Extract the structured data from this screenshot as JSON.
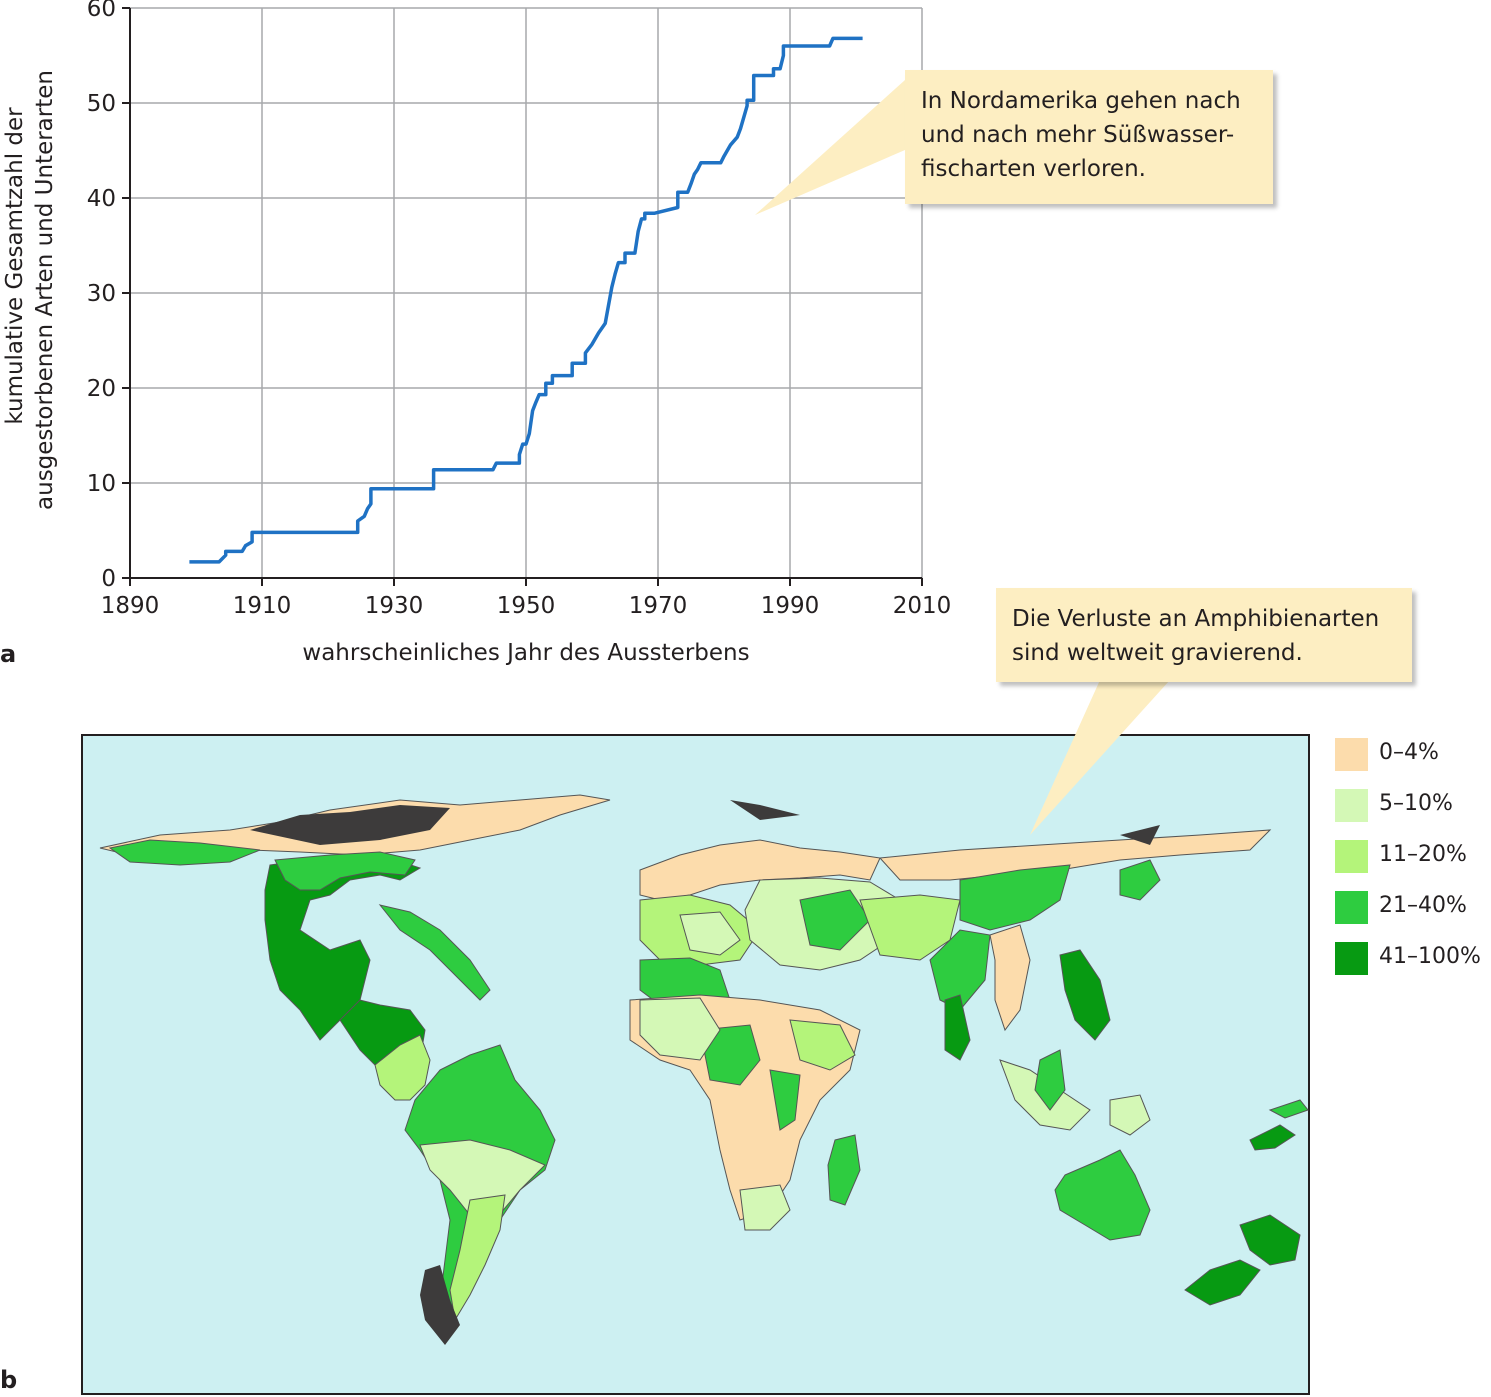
{
  "panel_a": {
    "letter": "a"
  },
  "panel_b": {
    "letter": "b"
  },
  "chart_data": [
    {
      "type": "line",
      "title": "",
      "xlabel": "wahrscheinliches Jahr des Aussterbens",
      "ylabel_lines": [
        "kumulative Gesamtzahl der",
        "ausgestorbenen Arten und Unterarten"
      ],
      "xlim": [
        1890,
        2010
      ],
      "ylim": [
        0,
        60
      ],
      "x_ticks": [
        "1890",
        "1910",
        "1930",
        "1950",
        "1970",
        "1990",
        "2010"
      ],
      "y_ticks": [
        "0",
        "10",
        "20",
        "30",
        "40",
        "50",
        "60"
      ],
      "grid": true,
      "line_color": "#1f72c4",
      "series": [
        {
          "x": [
            1899,
            1903.5,
            1904.5,
            1904.5,
            1907,
            1907.5,
            1908.5,
            1908.5,
            1924.5,
            1924.5,
            1925.5,
            1926,
            1926.5,
            1926.5,
            1936,
            1936,
            1945,
            1945.5,
            1949,
            1949,
            1949.5,
            1950,
            1950.5,
            1951,
            1951.5,
            1952,
            1953,
            1953,
            1954,
            1954,
            1957,
            1957,
            1959,
            1959,
            1960,
            1961,
            1962,
            1963,
            1963.5,
            1964,
            1965,
            1965,
            1966.5,
            1967,
            1967.5,
            1968,
            1968,
            1969.5,
            1969.5,
            1973,
            1973,
            1974.5,
            1975,
            1975.5,
            1976,
            1976.5,
            1977,
            1979.5,
            1980,
            1981,
            1982,
            1982.5,
            1983,
            1983.5,
            1983.5,
            1984.5,
            1984.5,
            1987.5,
            1987.5,
            1988.5,
            1989,
            1989,
            1989.5,
            1996,
            1996.5,
            2001
          ],
          "y": [
            1.7,
            1.7,
            2.4,
            2.8,
            2.8,
            3.4,
            3.8,
            4.8,
            4.8,
            6.0,
            6.5,
            7.3,
            7.8,
            9.4,
            9.4,
            11.4,
            11.4,
            12.1,
            12.1,
            13.0,
            14.1,
            14.1,
            15.2,
            17.6,
            18.5,
            19.3,
            19.3,
            20.5,
            20.5,
            21.3,
            21.3,
            22.6,
            22.6,
            23.7,
            24.6,
            25.8,
            26.8,
            30.6,
            32.0,
            33.2,
            33.2,
            34.2,
            34.2,
            36.5,
            37.8,
            37.8,
            38.4,
            38.4,
            38.4,
            39.0,
            40.6,
            40.6,
            41.5,
            42.5,
            43.0,
            43.7,
            43.7,
            43.7,
            44.4,
            45.6,
            46.4,
            47.3,
            48.5,
            49.7,
            50.3,
            50.3,
            52.9,
            52.9,
            53.6,
            53.6,
            55.0,
            56.0,
            56.0,
            56.0,
            56.8,
            56.8
          ]
        }
      ],
      "annotation": [
        "In Nordamerika gehen nach",
        "und nach mehr Süßwasser-",
        "fischarten verloren."
      ]
    },
    {
      "type": "map",
      "title": "",
      "annotation": [
        "Die Verluste an Amphibienarten",
        "sind weltweit gravierend."
      ],
      "ocean_color": "#cdf0f2",
      "legend": [
        {
          "label": "0–4%",
          "color": "#fcdcac"
        },
        {
          "label": "5–10%",
          "color": "#d4f8b6"
        },
        {
          "label": "11–20%",
          "color": "#b4f47a"
        },
        {
          "label": "21–40%",
          "color": "#2ecc40"
        },
        {
          "label": "41–100%",
          "color": "#079a12"
        }
      ],
      "no_data_color": "#3d3b3b"
    }
  ]
}
